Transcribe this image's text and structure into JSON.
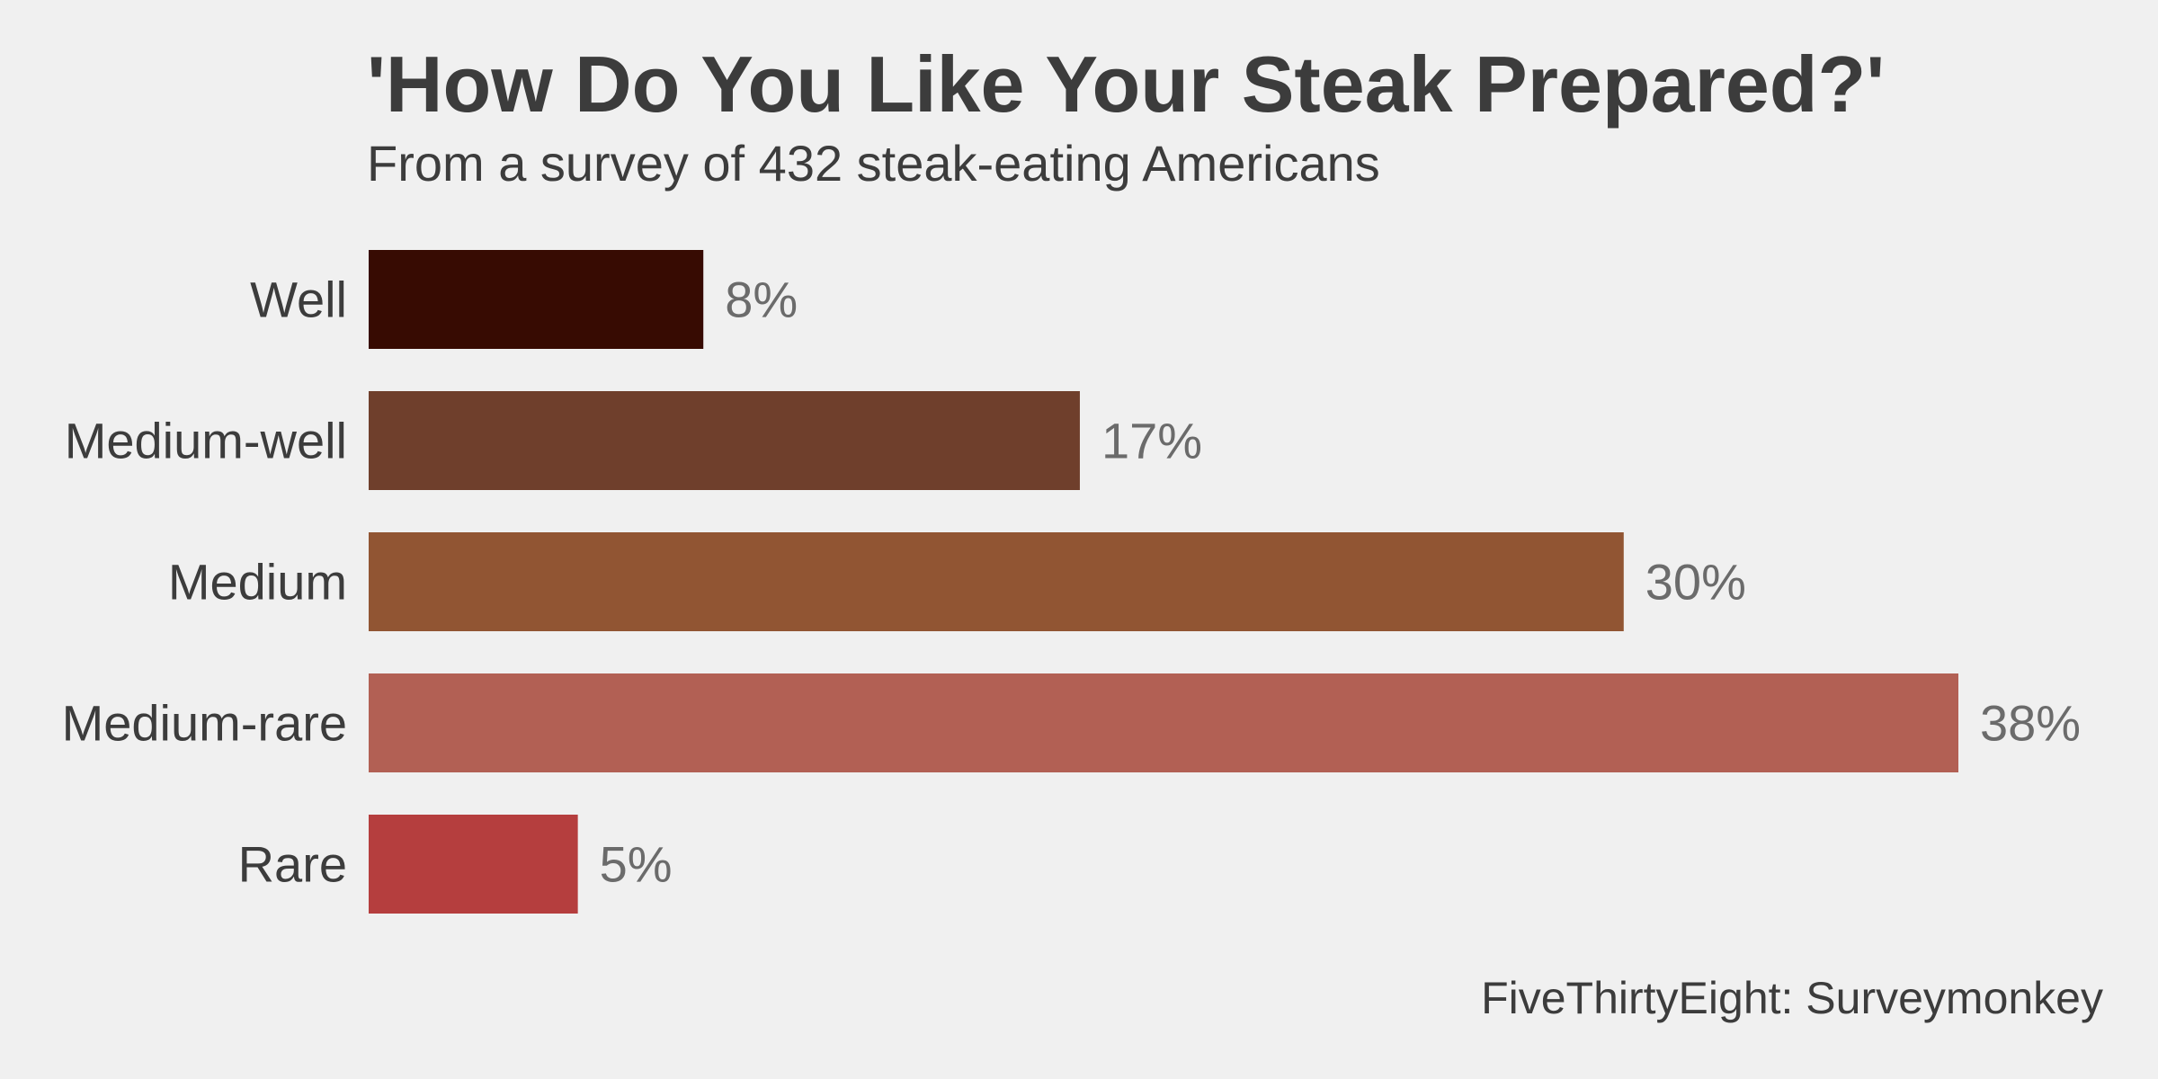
{
  "chart_data": {
    "type": "bar",
    "orientation": "horizontal",
    "title": "'How Do You Like Your Steak Prepared?'",
    "subtitle": "From a survey of 432 steak-eating Americans",
    "caption": "FiveThirtyEight: Surveymonkey",
    "categories": [
      "Well",
      "Medium-well",
      "Medium",
      "Medium-rare",
      "Rare"
    ],
    "values": [
      8,
      17,
      30,
      38,
      5
    ],
    "value_labels": [
      "8%",
      "17%",
      "30%",
      "38%",
      "5%"
    ],
    "bar_colors": [
      "#370b02",
      "#6f3f2c",
      "#915533",
      "#b26054",
      "#b53e3e"
    ],
    "xlim": [
      0,
      38
    ],
    "grid": false,
    "legend": "none"
  },
  "colors": {
    "background": "#f0f0f0",
    "text": "#3c3c3c",
    "value_text": "#6b6b6b"
  }
}
